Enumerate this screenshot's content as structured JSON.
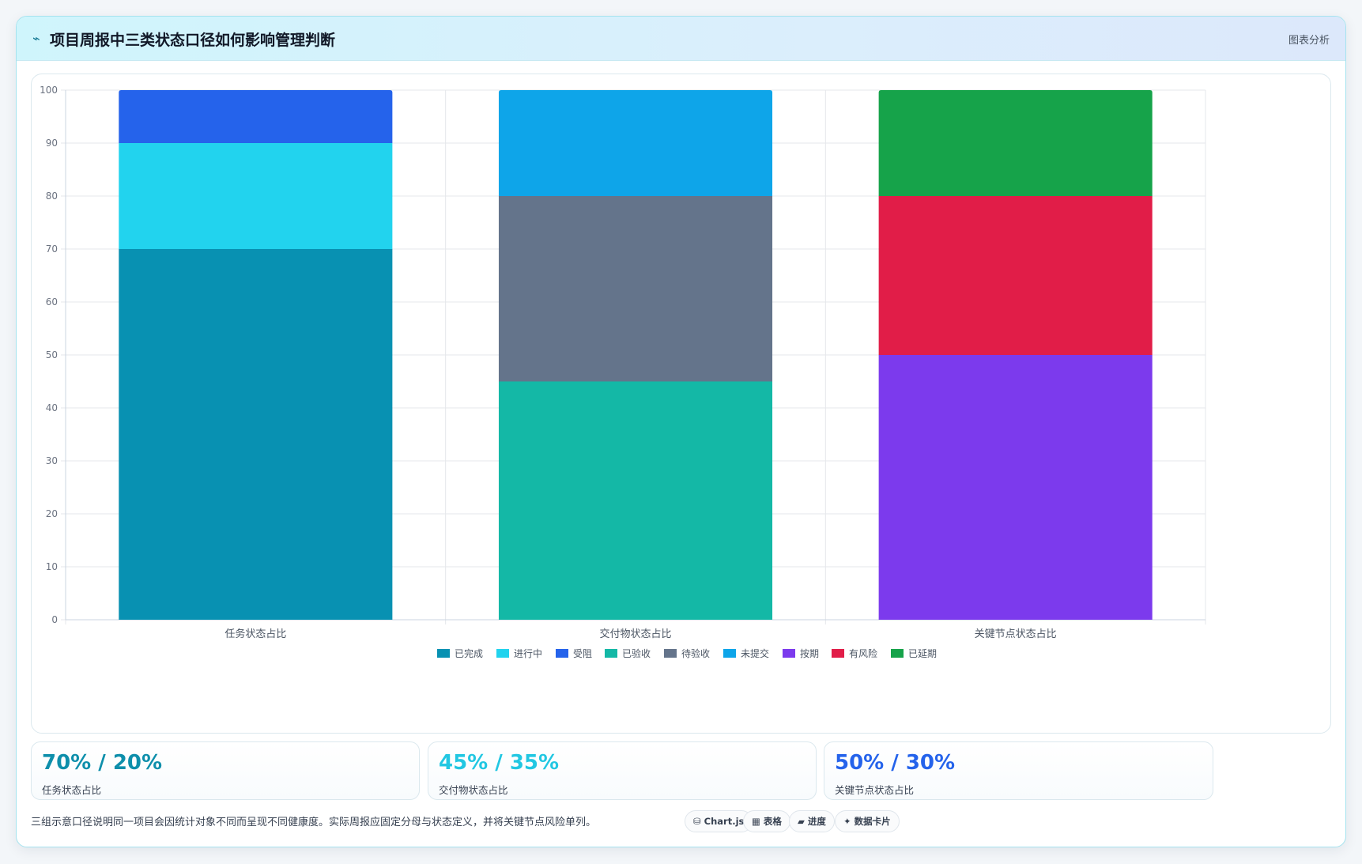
{
  "header": {
    "icon": "chart-spark-icon",
    "icon_glyph": "⌁",
    "title": "项目周报中三类状态口径如何影响管理判断",
    "tag": "图表分析"
  },
  "chart_data": {
    "type": "bar",
    "stacked": true,
    "categories": [
      "任务状态占比",
      "交付物状态占比",
      "关键节点状态占比"
    ],
    "ylim": [
      0,
      100
    ],
    "yticks": [
      0,
      10,
      20,
      30,
      40,
      50,
      60,
      70,
      80,
      90,
      100
    ],
    "grid": true,
    "legend_position": "bottom",
    "series": [
      {
        "name": "已完成",
        "color": "#0891b2",
        "values": [
          70,
          0,
          0
        ]
      },
      {
        "name": "进行中",
        "color": "#22d3ee",
        "values": [
          20,
          0,
          0
        ]
      },
      {
        "name": "受阻",
        "color": "#2563eb",
        "values": [
          10,
          0,
          0
        ]
      },
      {
        "name": "已验收",
        "color": "#14b8a6",
        "values": [
          0,
          45,
          0
        ]
      },
      {
        "name": "待验收",
        "color": "#64748b",
        "values": [
          0,
          35,
          0
        ]
      },
      {
        "name": "未提交",
        "color": "#0ea5e9",
        "values": [
          0,
          20,
          0
        ]
      },
      {
        "name": "按期",
        "color": "#7c3aed",
        "values": [
          0,
          0,
          50
        ]
      },
      {
        "name": "有风险",
        "color": "#e11d48",
        "values": [
          0,
          0,
          30
        ]
      },
      {
        "name": "已延期",
        "color": "#16a34a",
        "values": [
          0,
          0,
          20
        ]
      }
    ]
  },
  "stats": [
    {
      "value": "70% / 20%",
      "label": "任务状态占比",
      "color": "#0e8fab"
    },
    {
      "value": "45% / 35%",
      "label": "交付物状态占比",
      "color": "#22c7e2"
    },
    {
      "value": "50% / 30%",
      "label": "关键节点状态占比",
      "color": "#2563eb"
    }
  ],
  "footer": {
    "note": "三组示意口径说明同一项目会因统计对象不同而呈现不同健康度。实际周报应固定分母与状态定义，并将关键节点风险单列。",
    "pills": [
      {
        "icon": "database-icon",
        "glyph": "⛁",
        "label": "Chart.js"
      },
      {
        "icon": "table-icon",
        "glyph": "▦",
        "label": "表格"
      },
      {
        "icon": "progress-icon",
        "glyph": "▰",
        "label": "进度"
      },
      {
        "icon": "sparkle-icon",
        "glyph": "✦",
        "label": "数据卡片"
      }
    ]
  }
}
